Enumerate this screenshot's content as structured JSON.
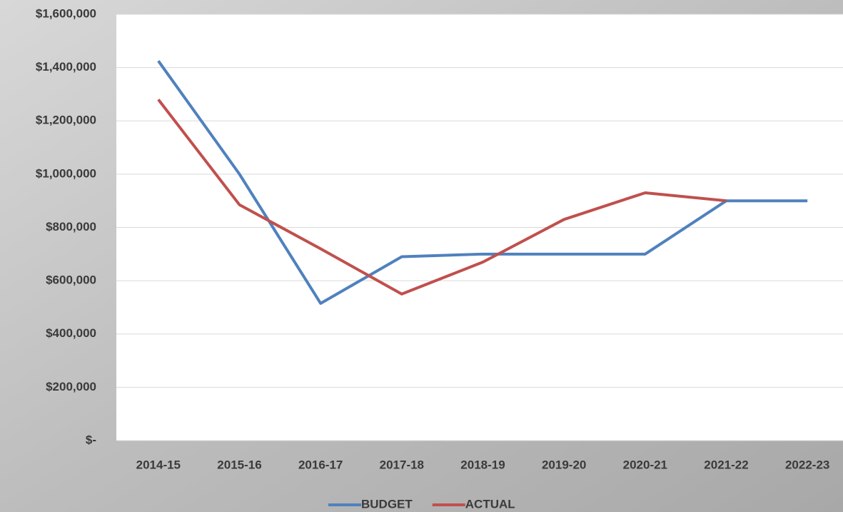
{
  "chart_data": {
    "type": "line",
    "categories": [
      "2014-15",
      "2015-16",
      "2016-17",
      "2017-18",
      "2018-19",
      "2019-20",
      "2020-21",
      "2021-22",
      "2022-23"
    ],
    "series": [
      {
        "name": "BUDGET",
        "color": "#4f81bd",
        "values": [
          1425000,
          1000000,
          515000,
          690000,
          700000,
          700000,
          700000,
          900000,
          900000
        ]
      },
      {
        "name": "ACTUAL",
        "color": "#c0504d",
        "values": [
          1280000,
          885000,
          720000,
          550000,
          670000,
          830000,
          930000,
          900000,
          null
        ]
      }
    ],
    "ylim": [
      0,
      1600000
    ],
    "yticks": [
      {
        "value": 0,
        "label": "$-"
      },
      {
        "value": 200000,
        "label": "$200,000"
      },
      {
        "value": 400000,
        "label": "$400,000"
      },
      {
        "value": 600000,
        "label": "$600,000"
      },
      {
        "value": 800000,
        "label": "$800,000"
      },
      {
        "value": 1000000,
        "label": "$1,000,000"
      },
      {
        "value": 1200000,
        "label": "$1,200,000"
      },
      {
        "value": 1400000,
        "label": "$1,400,000"
      },
      {
        "value": 1600000,
        "label": "$1,600,000"
      }
    ],
    "grid": true,
    "legend": "bottom"
  }
}
